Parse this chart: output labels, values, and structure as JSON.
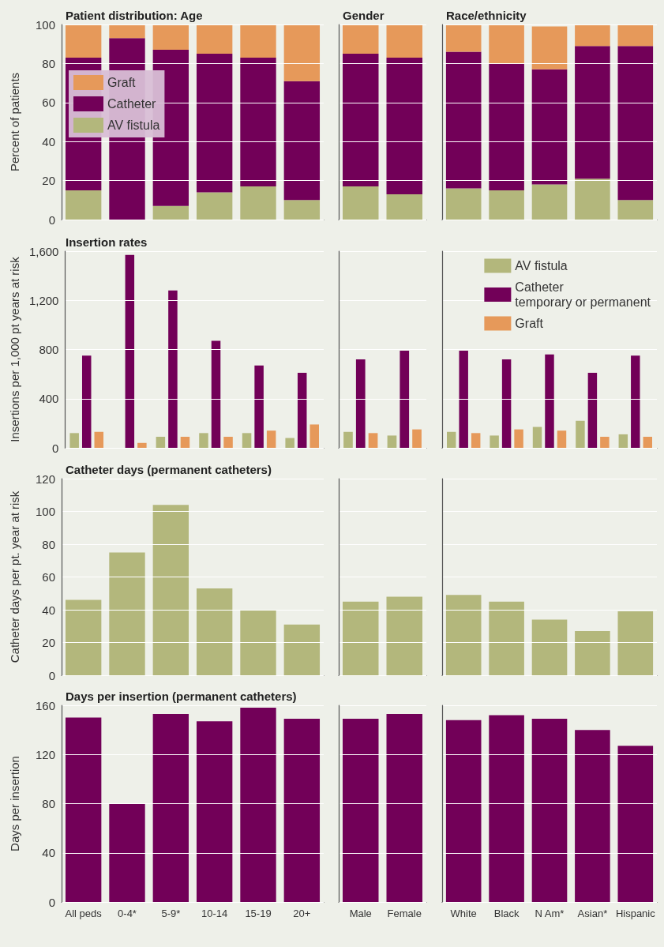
{
  "chart_data": [
    {
      "type": "bar",
      "title": "Patient distribution: Age",
      "ylabel": "Percent of patients",
      "categories": [
        null,
        null,
        null,
        null,
        null,
        null
      ],
      "stacked": true,
      "legend": "left",
      "grid": "y",
      "tick_labels": "y",
      "ylim": [
        0,
        100
      ],
      "yticks": [
        0,
        20,
        40,
        60,
        80,
        100
      ],
      "series": [
        {
          "name": "AV fistula",
          "color": "#b3b77c",
          "values": [
            15,
            0,
            7,
            14,
            17,
            10
          ]
        },
        {
          "name": "Catheter",
          "color": "#720058",
          "values": [
            68,
            93,
            80,
            71,
            66,
            61
          ]
        },
        {
          "name": "Graft",
          "color": "#e6995a",
          "values": [
            17,
            7,
            13,
            15,
            17,
            29
          ]
        }
      ]
    },
    {
      "type": "bar",
      "title": "Gender",
      "categories": [
        null,
        null
      ],
      "stacked": true,
      "grid": "y",
      "tick_labels": false,
      "ylim": [
        0,
        100
      ],
      "yticks": [
        0,
        20,
        40,
        60,
        80,
        100
      ],
      "series": [
        {
          "color": "#b3b77c",
          "values": [
            17,
            13
          ]
        },
        {
          "color": "#720058",
          "values": [
            68,
            70
          ]
        },
        {
          "color": "#e6995a",
          "values": [
            15,
            17
          ]
        }
      ]
    },
    {
      "type": "bar",
      "title": "Race/ethnicity",
      "categories": [
        null,
        null,
        null,
        null,
        null
      ],
      "stacked": true,
      "grid": "y",
      "tick_labels": false,
      "ylim": [
        0,
        100
      ],
      "yticks": [
        0,
        20,
        40,
        60,
        80,
        100
      ],
      "series": [
        {
          "color": "#b3b77c",
          "values": [
            16,
            15,
            18,
            21,
            10
          ]
        },
        {
          "color": "#720058",
          "values": [
            70,
            65,
            59,
            68,
            79
          ]
        },
        {
          "color": "#e6995a",
          "values": [
            14,
            20,
            22,
            11,
            11
          ]
        }
      ]
    },
    {
      "type": "bar",
      "title": "Insertion rates",
      "ylabel": "Insertions per 1,000 pt years at risk",
      "categories": [
        null,
        null,
        null,
        null,
        null,
        null
      ],
      "grid": "y",
      "tick_labels": "y",
      "ylim": [
        0,
        1600
      ],
      "yticks": [
        0,
        400,
        800,
        {
          "value": 1200,
          "label": "1,200"
        },
        {
          "value": 1600,
          "label": "1,600"
        }
      ],
      "series": [
        {
          "color": "#b3b77c",
          "values": [
            120,
            0,
            90,
            120,
            120,
            80
          ]
        },
        {
          "color": "#720058",
          "values": [
            750,
            1570,
            1280,
            870,
            670,
            610
          ]
        },
        {
          "color": "#e6995a",
          "values": [
            130,
            40,
            90,
            90,
            140,
            190
          ]
        }
      ]
    },
    {
      "type": "bar",
      "categories": [
        null,
        null
      ],
      "grid": "y",
      "tick_labels": false,
      "ylim": [
        0,
        1600
      ],
      "yticks": [
        0,
        400,
        800,
        1200,
        1600
      ],
      "series": [
        {
          "color": "#b3b77c",
          "values": [
            130,
            100
          ]
        },
        {
          "color": "#720058",
          "values": [
            720,
            790
          ]
        },
        {
          "color": "#e6995a",
          "values": [
            120,
            150
          ]
        }
      ]
    },
    {
      "type": "bar",
      "categories": [
        null,
        null,
        null,
        null,
        null
      ],
      "legend": "top right",
      "grid": "y",
      "tick_labels": false,
      "ylim": [
        0,
        1600
      ],
      "yticks": [
        0,
        400,
        800,
        1200,
        1600
      ],
      "series": [
        {
          "name": "AV fistula",
          "color": "#b3b77c",
          "values": [
            130,
            100,
            170,
            220,
            110
          ]
        },
        {
          "name": "Catheter\ntemporary or permanent",
          "color": "#720058",
          "values": [
            790,
            720,
            760,
            610,
            750
          ]
        },
        {
          "name": "Graft",
          "color": "#e6995a",
          "values": [
            120,
            150,
            140,
            90,
            90
          ]
        }
      ]
    },
    {
      "type": "bar",
      "title": "Catheter days (permanent catheters)",
      "ylabel": "Catheter days per pt. year at risk",
      "categories": [
        null,
        null,
        null,
        null,
        null,
        null
      ],
      "grid": "y",
      "tick_labels": "y",
      "ylim": [
        0,
        120
      ],
      "yticks": [
        0,
        20,
        40,
        60,
        80,
        100,
        120
      ],
      "color": "#b3b77c",
      "values": [
        46,
        75,
        104,
        53,
        40,
        31
      ]
    },
    {
      "type": "bar",
      "categories": [
        null,
        null
      ],
      "grid": "y",
      "tick_labels": false,
      "ylim": [
        0,
        120
      ],
      "yticks": [
        0,
        20,
        40,
        60,
        80,
        100,
        120
      ],
      "color": "#b3b77c",
      "values": [
        45,
        48
      ]
    },
    {
      "type": "bar",
      "categories": [
        null,
        null,
        null,
        null,
        null
      ],
      "grid": "y",
      "tick_labels": false,
      "ylim": [
        0,
        120
      ],
      "yticks": [
        0,
        20,
        40,
        60,
        80,
        100,
        120
      ],
      "color": "#b3b77c",
      "values": [
        49,
        45,
        34,
        27,
        39
      ]
    },
    {
      "type": "bar",
      "title": "Days per insertion (permanent catheters)",
      "ylabel": "Days per insertion",
      "categories": [
        "All peds",
        "0-4*",
        "5-9*",
        "10-14",
        "15-19",
        "20+"
      ],
      "grid": "y",
      "ylim": [
        0,
        160
      ],
      "yticks": [
        0,
        40,
        80,
        120,
        160
      ],
      "color": "#720058",
      "values": [
        150,
        80,
        153,
        147,
        158,
        149
      ]
    },
    {
      "type": "bar",
      "categories": [
        "Male",
        "Female"
      ],
      "grid": "y",
      "tick_labels": "x",
      "ylim": [
        0,
        160
      ],
      "yticks": [
        0,
        40,
        80,
        120,
        160
      ],
      "color": "#720058",
      "values": [
        149,
        153
      ]
    },
    {
      "type": "bar",
      "categories": [
        "White",
        "Black",
        "N Am*",
        "Asian*",
        "Hispanic"
      ],
      "grid": "y",
      "tick_labels": "x",
      "ylim": [
        0,
        160
      ],
      "yticks": [
        0,
        40,
        80,
        120,
        160
      ],
      "color": "#720058",
      "values": [
        148,
        152,
        149,
        140,
        127
      ]
    }
  ]
}
